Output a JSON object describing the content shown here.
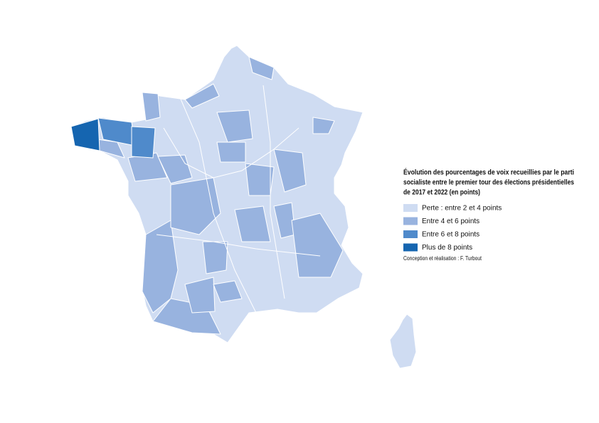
{
  "legend": {
    "title": [
      "Évolution des pourcentages de voix recueillies par le parti",
      "socialiste entre le premier tour des élections présidentielles",
      "de 2017 et 2022 (en points)"
    ],
    "items": [
      {
        "label": "Perte : entre 2 et 4 points",
        "color": "#cfdcf2"
      },
      {
        "label": "Entre 4 et 6 points",
        "color": "#98b3df"
      },
      {
        "label": "Entre 6 et 8 points",
        "color": "#4f8acb"
      },
      {
        "label": "Plus de 8 points",
        "color": "#1565b0"
      }
    ]
  },
  "credit": "Conception et réalisation : F. Turbout"
}
